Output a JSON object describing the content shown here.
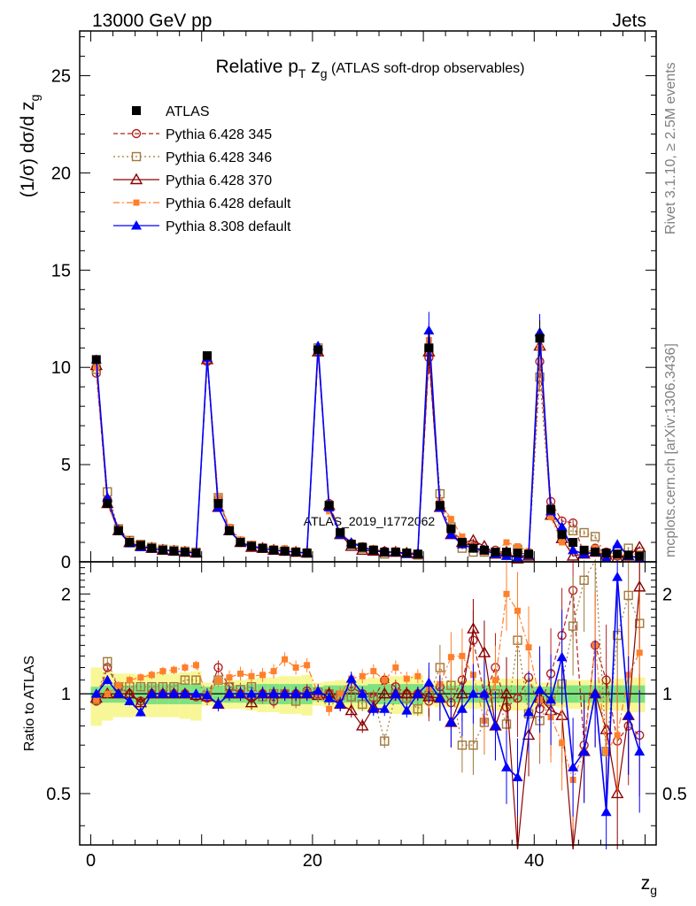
{
  "header": {
    "left": "13000 GeV pp",
    "right": "Jets"
  },
  "side_labels": {
    "rivet": "Rivet 3.1.10, ≥ 2.5M events",
    "mcplots": "mcplots.cern.ch [arXiv:1306.3436]"
  },
  "chart_data": [
    {
      "type": "line",
      "title": "Relative p_T z_g (ATLAS soft-drop observables)",
      "title_parts": {
        "main": "Relative p",
        "sub_T": "T",
        "mid": " z",
        "sub_g": "g",
        "tail": " (ATLAS soft-drop observables)"
      },
      "watermark": "ATLAS_2019_I1772062",
      "ylabel": "(1/σ) dσ/d z_g",
      "ylabel_parts": {
        "main": "(1/σ) dσ/d z",
        "sub": "g"
      },
      "xlabel": "z_g",
      "xlabel_parts": {
        "main": "z",
        "sub": "g"
      },
      "xlim": [
        -1,
        51
      ],
      "ylim": [
        0,
        27.3
      ],
      "y_ticks": [
        0,
        5,
        10,
        15,
        20,
        25
      ],
      "x_ticks": [
        0,
        10,
        20,
        30,
        40
      ],
      "legend_position": "top-left",
      "x": [
        0.5,
        1.5,
        2.5,
        3.5,
        4.5,
        5.5,
        6.5,
        7.5,
        8.5,
        9.5,
        10.5,
        11.5,
        12.5,
        13.5,
        14.5,
        15.5,
        16.5,
        17.5,
        18.5,
        19.5,
        20.5,
        21.5,
        22.5,
        23.5,
        24.5,
        25.5,
        26.5,
        27.5,
        28.5,
        29.5,
        30.5,
        31.5,
        32.5,
        33.5,
        34.5,
        35.5,
        36.5,
        37.5,
        38.5,
        39.5,
        40.5,
        41.5,
        42.5,
        43.5,
        44.5,
        45.5,
        46.5,
        47.5,
        48.5,
        49.5
      ],
      "series": [
        {
          "name": "ATLAS",
          "color": "#000000",
          "marker": "square-filled",
          "values": [
            10.4,
            3.0,
            1.6,
            1.0,
            0.85,
            0.7,
            0.6,
            0.55,
            0.5,
            0.45,
            10.6,
            3.0,
            1.6,
            1.0,
            0.8,
            0.7,
            0.6,
            0.55,
            0.5,
            0.45,
            10.9,
            2.9,
            1.5,
            0.9,
            0.75,
            0.6,
            0.5,
            0.5,
            0.45,
            0.4,
            11.0,
            2.9,
            1.7,
            1.0,
            0.7,
            0.6,
            0.5,
            0.5,
            0.45,
            0.4,
            11.5,
            2.7,
            1.4,
            1.0,
            0.6,
            0.5,
            0.45,
            0.4,
            0.35,
            0.3
          ]
        },
        {
          "name": "Pythia 6.428 345",
          "color": "#b22222",
          "marker": "circle-open",
          "dash": "5,3",
          "values": [
            9.7,
            3.2,
            1.7,
            1.0,
            0.8,
            0.7,
            0.6,
            0.55,
            0.5,
            0.45,
            10.3,
            3.2,
            1.7,
            1.0,
            0.8,
            0.7,
            0.6,
            0.55,
            0.5,
            0.45,
            10.8,
            3.0,
            1.5,
            0.95,
            0.75,
            0.6,
            0.55,
            0.5,
            0.45,
            0.4,
            10.5,
            3.0,
            1.6,
            1.1,
            0.8,
            0.6,
            0.6,
            0.45,
            0.45,
            0.4,
            10.3,
            3.1,
            2.1,
            2.0,
            0.4,
            0.7,
            0.5,
            0.3,
            0.3,
            0.25
          ]
        },
        {
          "name": "Pythia 6.428 346",
          "color": "#a0783c",
          "marker": "square-open",
          "dash": "2,3",
          "values": [
            9.9,
            3.6,
            1.7,
            1.1,
            0.9,
            0.75,
            0.65,
            0.6,
            0.55,
            0.5,
            10.5,
            3.3,
            1.7,
            1.05,
            0.85,
            0.7,
            0.6,
            0.55,
            0.5,
            0.45,
            11.0,
            2.9,
            1.5,
            0.9,
            0.7,
            0.6,
            0.4,
            0.5,
            0.45,
            0.35,
            10.9,
            3.5,
            1.8,
            0.7,
            0.5,
            0.5,
            0.5,
            0.4,
            0.65,
            0.35,
            9.5,
            2.6,
            1.5,
            1.6,
            1.5,
            1.3,
            0.3,
            0.6,
            0.7,
            0.5
          ]
        },
        {
          "name": "Pythia 6.428 370",
          "color": "#8b0000",
          "marker": "triangle-open",
          "dash": "",
          "values": [
            10.1,
            3.0,
            1.6,
            1.0,
            0.8,
            0.7,
            0.6,
            0.55,
            0.5,
            0.45,
            10.4,
            2.8,
            1.6,
            1.0,
            0.75,
            0.7,
            0.6,
            0.55,
            0.5,
            0.45,
            10.8,
            2.9,
            1.4,
            0.8,
            0.6,
            0.55,
            0.5,
            0.5,
            0.45,
            0.4,
            10.8,
            2.8,
            1.4,
            1.0,
            1.1,
            0.8,
            0.4,
            0.5,
            0.15,
            0.3,
            11.1,
            2.4,
            1.2,
            0.3,
            0.4,
            0.5,
            0.35,
            0.2,
            0.3,
            0.75
          ]
        },
        {
          "name": "Pythia 6.428 default",
          "color": "#ff7f2a",
          "marker": "square-filled-small",
          "dash": "7,3,2,3",
          "values": [
            10.0,
            3.0,
            1.7,
            1.1,
            0.95,
            0.8,
            0.7,
            0.65,
            0.6,
            0.55,
            10.4,
            3.3,
            1.8,
            1.15,
            0.9,
            0.8,
            0.7,
            0.7,
            0.6,
            0.55,
            10.9,
            2.6,
            1.5,
            1.0,
            0.85,
            0.7,
            0.55,
            0.6,
            0.5,
            0.45,
            11.4,
            3.1,
            2.2,
            1.3,
            0.8,
            0.5,
            0.55,
            1.0,
            0.8,
            0.55,
            11.0,
            2.3,
            1.0,
            0.55,
            0.4,
            0.7,
            0.3,
            0.3,
            0.4,
            0.4
          ]
        },
        {
          "name": "Pythia 8.308 default",
          "color": "#0000ff",
          "marker": "triangle-filled",
          "dash": "",
          "values": [
            10.4,
            3.3,
            1.6,
            0.95,
            0.75,
            0.7,
            0.6,
            0.55,
            0.5,
            0.45,
            10.5,
            2.8,
            1.6,
            1.0,
            0.8,
            0.7,
            0.6,
            0.55,
            0.5,
            0.45,
            11.1,
            2.8,
            1.4,
            1.0,
            0.75,
            0.6,
            0.5,
            0.5,
            0.4,
            0.4,
            11.9,
            2.8,
            1.4,
            0.9,
            0.7,
            0.6,
            0.4,
            0.3,
            0.25,
            0.35,
            11.8,
            2.6,
            1.8,
            0.6,
            0.4,
            0.5,
            0.2,
            0.9,
            0.3,
            0.2
          ]
        }
      ]
    },
    {
      "type": "line",
      "ylabel": "Ratio to ATLAS",
      "xlabel": "z_g",
      "xlim": [
        -1,
        51
      ],
      "ylim": [
        0.35,
        2.5
      ],
      "y_ticks": [
        0.5,
        1,
        2
      ],
      "y_tick_labels": [
        "0.5",
        "1",
        "2"
      ],
      "x_ticks": [
        0,
        20,
        40
      ],
      "x_tick_labels": [
        "0",
        "20",
        "40"
      ],
      "scale": "log",
      "band_inner_color": "#7fe27f",
      "band_outer_color": "#f7f797",
      "band_inner": [
        0.05,
        0.06,
        0.06,
        0.06,
        0.07,
        0.07,
        0.07,
        0.07,
        0.07,
        0.07,
        0.05,
        0.06,
        0.06,
        0.06,
        0.07,
        0.07,
        0.07,
        0.07,
        0.07,
        0.07,
        0.05,
        0.06,
        0.06,
        0.06,
        0.06,
        0.07,
        0.07,
        0.07,
        0.07,
        0.07,
        0.05,
        0.05,
        0.06,
        0.06,
        0.06,
        0.06,
        0.06,
        0.06,
        0.06,
        0.06,
        0.05,
        0.05,
        0.06,
        0.06,
        0.06,
        0.06,
        0.06,
        0.06,
        0.06,
        0.06
      ],
      "band_outer": [
        0.2,
        0.17,
        0.15,
        0.15,
        0.14,
        0.15,
        0.15,
        0.15,
        0.16,
        0.17,
        0.08,
        0.09,
        0.1,
        0.1,
        0.11,
        0.12,
        0.12,
        0.13,
        0.13,
        0.14,
        0.08,
        0.09,
        0.1,
        0.1,
        0.11,
        0.12,
        0.12,
        0.13,
        0.13,
        0.14,
        0.08,
        0.09,
        0.09,
        0.1,
        0.1,
        0.1,
        0.11,
        0.11,
        0.11,
        0.12,
        0.08,
        0.08,
        0.09,
        0.1,
        0.1,
        0.1,
        0.11,
        0.11,
        0.12,
        0.12
      ],
      "series": [
        {
          "name": "Pythia 6.428 345",
          "values": [
            0.95,
            1.2,
            1.05,
            1.0,
            0.95,
            1.0,
            1.0,
            1.0,
            1.0,
            0.98,
            0.97,
            1.2,
            1.05,
            1.0,
            0.98,
            1.0,
            0.95,
            1.0,
            1.0,
            1.02,
            1.0,
            1.0,
            0.98,
            1.05,
            1.0,
            0.97,
            1.1,
            1.05,
            1.0,
            1.0,
            0.95,
            1.05,
            0.94,
            1.1,
            1.45,
            0.99,
            1.2,
            0.91,
            0.97,
            1.12,
            0.9,
            1.15,
            1.5,
            2.05,
            0.7,
            1.4,
            1.1,
            0.72,
            0.8,
            0.75
          ]
        },
        {
          "name": "Pythia 6.428 346",
          "values": [
            0.96,
            1.25,
            1.05,
            1.05,
            1.05,
            1.05,
            1.05,
            1.05,
            1.1,
            1.1,
            0.99,
            1.1,
            1.05,
            1.03,
            1.05,
            0.98,
            1.0,
            1.0,
            0.95,
            1.0,
            1.01,
            1.0,
            0.99,
            0.98,
            0.93,
            0.98,
            0.72,
            1.0,
            0.97,
            0.9,
            0.99,
            1.2,
            1.06,
            0.7,
            0.7,
            0.82,
            1.0,
            0.81,
            1.45,
            0.87,
            0.83,
            0.95,
            1.07,
            1.6,
            2.2,
            2.65,
            0.67,
            1.5,
            1.98,
            1.63
          ]
        },
        {
          "name": "Pythia 6.428 370",
          "values": [
            0.97,
            1.0,
            1.0,
            1.0,
            0.94,
            1.0,
            1.0,
            1.0,
            1.0,
            0.99,
            0.98,
            0.93,
            1.0,
            1.0,
            0.94,
            1.0,
            1.0,
            1.0,
            1.0,
            1.0,
            0.99,
            1.0,
            0.93,
            0.89,
            0.8,
            0.91,
            1.0,
            1.0,
            1.0,
            1.0,
            0.98,
            0.97,
            0.82,
            1.0,
            1.57,
            1.33,
            0.8,
            1.0,
            0.33,
            0.75,
            0.97,
            0.89,
            0.86,
            0.3,
            0.67,
            1.0,
            0.78,
            0.5,
            0.86,
            2.1
          ]
        },
        {
          "name": "Pythia 6.428 default",
          "values": [
            0.96,
            1.0,
            1.06,
            1.1,
            1.12,
            1.14,
            1.17,
            1.18,
            1.2,
            1.22,
            0.98,
            1.1,
            1.12,
            1.15,
            1.13,
            1.14,
            1.17,
            1.27,
            1.2,
            1.22,
            1.0,
            0.9,
            1.0,
            1.11,
            1.13,
            1.17,
            1.1,
            1.2,
            1.11,
            1.13,
            1.04,
            1.07,
            1.29,
            1.3,
            1.14,
            0.83,
            1.1,
            2.0,
            1.78,
            1.38,
            0.96,
            0.85,
            0.71,
            0.55,
            0.67,
            1.4,
            0.67,
            0.75,
            1.14,
            1.33
          ]
        },
        {
          "name": "Pythia 8.308 default",
          "values": [
            1.0,
            1.1,
            1.0,
            0.95,
            0.88,
            1.0,
            1.0,
            1.0,
            1.0,
            1.0,
            0.99,
            0.93,
            1.0,
            1.0,
            1.0,
            1.0,
            1.0,
            1.0,
            1.0,
            1.0,
            1.02,
            0.97,
            0.93,
            1.11,
            1.0,
            0.9,
            0.9,
            1.0,
            0.89,
            1.0,
            1.08,
            0.97,
            0.82,
            0.9,
            1.0,
            1.0,
            0.8,
            0.6,
            0.56,
            0.88,
            1.03,
            0.96,
            1.29,
            0.6,
            0.67,
            1.0,
            0.44,
            2.25,
            0.86,
            0.67
          ]
        }
      ]
    }
  ]
}
